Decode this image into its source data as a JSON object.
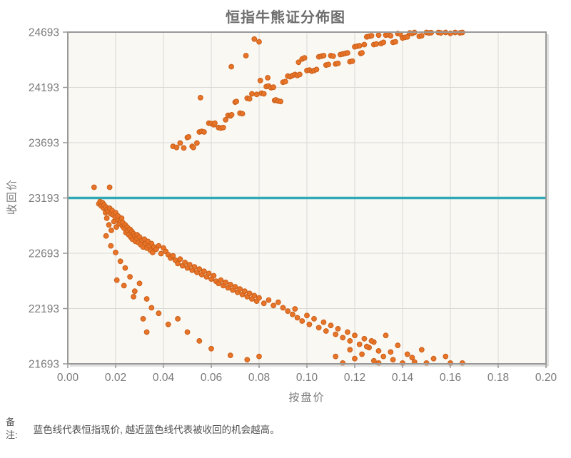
{
  "title": "恒指牛熊证分佈图",
  "note": {
    "label_line1": "备",
    "label_line2": "注:",
    "text": "蓝色线代表恒指现价, 越近蓝色线代表被收回的机会越高。"
  },
  "colors": {
    "dot_fill": "#e8742a",
    "dot_border": "#ca5f17",
    "hline_teal": "#2fa9b5",
    "plot_bg": "#faf8f3",
    "grid": "#d9d9d4",
    "frame": "#99999a",
    "shadow": "#c8c8c4",
    "tick_text": "#7a7a7a",
    "title_text": "#6e6e6e"
  },
  "chart_data": {
    "type": "scatter",
    "title": "恒指牛熊证分佈图",
    "xlabel": "按盘价",
    "ylabel": "收回价",
    "xlim": [
      0.0,
      0.2
    ],
    "ylim": [
      21693,
      24693
    ],
    "grid": true,
    "x_tick_values": [
      0.0,
      0.02,
      0.04,
      0.06,
      0.08,
      0.1,
      0.12,
      0.14,
      0.16,
      0.18,
      0.2
    ],
    "x_tick_labels": [
      "0.00",
      "0.02",
      "0.04",
      "0.06",
      "0.08",
      "0.10",
      "0.12",
      "0.14",
      "0.16",
      "0.18",
      "0.20"
    ],
    "y_tick_values": [
      24693,
      24193,
      23693,
      23193,
      22693,
      22193,
      21693
    ],
    "y_tick_labels": [
      "24693",
      "24193",
      "23693",
      "23193",
      "22693",
      "22193",
      "21693"
    ],
    "hline": {
      "y": 23193,
      "color": "#2fa9b5"
    },
    "series": [
      {
        "name": "upper-cluster-bear",
        "color": "#e8742a",
        "points": [
          [
            0.044,
            23660
          ],
          [
            0.0455,
            23650
          ],
          [
            0.047,
            23690
          ],
          [
            0.0485,
            23645
          ],
          [
            0.05,
            23740
          ],
          [
            0.0505,
            23745
          ],
          [
            0.052,
            23660
          ],
          [
            0.0525,
            23650
          ],
          [
            0.054,
            23690
          ],
          [
            0.055,
            23790
          ],
          [
            0.056,
            23795
          ],
          [
            0.057,
            23790
          ],
          [
            0.0555,
            24100
          ],
          [
            0.059,
            23870
          ],
          [
            0.06,
            23865
          ],
          [
            0.061,
            23855
          ],
          [
            0.0615,
            23870
          ],
          [
            0.063,
            23830
          ],
          [
            0.064,
            23825
          ],
          [
            0.065,
            23830
          ],
          [
            0.066,
            23900
          ],
          [
            0.067,
            23940
          ],
          [
            0.068,
            23935
          ],
          [
            0.0684,
            24380
          ],
          [
            0.0685,
            23945
          ],
          [
            0.07,
            24060
          ],
          [
            0.0705,
            24065
          ],
          [
            0.072,
            23960
          ],
          [
            0.073,
            23955
          ],
          [
            0.0745,
            24480
          ],
          [
            0.075,
            24095
          ],
          [
            0.076,
            24090
          ],
          [
            0.077,
            24135
          ],
          [
            0.078,
            24630
          ],
          [
            0.08,
            24605
          ],
          [
            0.079,
            24130
          ],
          [
            0.0805,
            24255
          ],
          [
            0.081,
            24140
          ],
          [
            0.082,
            24135
          ],
          [
            0.083,
            24200
          ],
          [
            0.0836,
            24280
          ],
          [
            0.084,
            24205
          ],
          [
            0.085,
            24190
          ],
          [
            0.086,
            24195
          ],
          [
            0.0865,
            24075
          ],
          [
            0.087,
            24080
          ],
          [
            0.088,
            24070
          ],
          [
            0.089,
            24065
          ],
          [
            0.09,
            24240
          ],
          [
            0.091,
            24245
          ],
          [
            0.092,
            24295
          ],
          [
            0.093,
            24290
          ],
          [
            0.094,
            24300
          ],
          [
            0.095,
            24310
          ],
          [
            0.096,
            24300
          ],
          [
            0.0965,
            24420
          ],
          [
            0.097,
            24310
          ],
          [
            0.098,
            24450
          ],
          [
            0.099,
            24460
          ],
          [
            0.1,
            24345
          ],
          [
            0.101,
            24350
          ],
          [
            0.102,
            24340
          ],
          [
            0.103,
            24345
          ],
          [
            0.104,
            24355
          ],
          [
            0.105,
            24470
          ],
          [
            0.106,
            24475
          ],
          [
            0.107,
            24480
          ],
          [
            0.108,
            24395
          ],
          [
            0.109,
            24400
          ],
          [
            0.11,
            24480
          ],
          [
            0.111,
            24475
          ],
          [
            0.112,
            24405
          ],
          [
            0.113,
            24410
          ],
          [
            0.114,
            24490
          ],
          [
            0.115,
            24495
          ],
          [
            0.116,
            24500
          ],
          [
            0.117,
            24505
          ],
          [
            0.118,
            24425
          ],
          [
            0.119,
            24430
          ],
          [
            0.12,
            24560
          ],
          [
            0.121,
            24565
          ],
          [
            0.122,
            24570
          ],
          [
            0.1225,
            24500
          ],
          [
            0.123,
            24505
          ],
          [
            0.124,
            24580
          ],
          [
            0.125,
            24650
          ],
          [
            0.126,
            24655
          ],
          [
            0.127,
            24660
          ],
          [
            0.128,
            24580
          ],
          [
            0.129,
            24585
          ],
          [
            0.13,
            24665
          ],
          [
            0.131,
            24590
          ],
          [
            0.132,
            24600
          ],
          [
            0.133,
            24665
          ],
          [
            0.134,
            24670
          ],
          [
            0.135,
            24660
          ],
          [
            0.136,
            24600
          ],
          [
            0.137,
            24605
          ],
          [
            0.138,
            24680
          ],
          [
            0.139,
            24675
          ],
          [
            0.14,
            24640
          ],
          [
            0.141,
            24645
          ],
          [
            0.142,
            24650
          ],
          [
            0.143,
            24685
          ],
          [
            0.144,
            24680
          ],
          [
            0.145,
            24690
          ],
          [
            0.147,
            24655
          ],
          [
            0.148,
            24660
          ],
          [
            0.15,
            24690
          ],
          [
            0.151,
            24685
          ],
          [
            0.152,
            24688
          ],
          [
            0.155,
            24690
          ],
          [
            0.156,
            24686
          ],
          [
            0.158,
            24690
          ],
          [
            0.16,
            24682
          ],
          [
            0.162,
            24690
          ],
          [
            0.164,
            24686
          ],
          [
            0.165,
            24690
          ]
        ]
      },
      {
        "name": "lower-cluster-bull",
        "color": "#e8742a",
        "points": [
          [
            0.011,
            23290
          ],
          [
            0.0175,
            23290
          ],
          [
            0.013,
            23140
          ],
          [
            0.0135,
            23160
          ],
          [
            0.014,
            23120
          ],
          [
            0.0145,
            23150
          ],
          [
            0.015,
            23100
          ],
          [
            0.0152,
            23130
          ],
          [
            0.0158,
            23060
          ],
          [
            0.016,
            23110
          ],
          [
            0.0163,
            23010
          ],
          [
            0.0165,
            23090
          ],
          [
            0.017,
            23070
          ],
          [
            0.0172,
            22950
          ],
          [
            0.0175,
            23100
          ],
          [
            0.018,
            23050
          ],
          [
            0.0182,
            22900
          ],
          [
            0.0185,
            23080
          ],
          [
            0.019,
            23040
          ],
          [
            0.0193,
            22980
          ],
          [
            0.0198,
            23020
          ],
          [
            0.02,
            23060
          ],
          [
            0.0203,
            22930
          ],
          [
            0.0208,
            23000
          ],
          [
            0.021,
            23030
          ],
          [
            0.0215,
            22960
          ],
          [
            0.022,
            22990
          ],
          [
            0.0225,
            23010
          ],
          [
            0.0228,
            22940
          ],
          [
            0.023,
            22970
          ],
          [
            0.0235,
            22920
          ],
          [
            0.024,
            22950
          ],
          [
            0.0243,
            22880
          ],
          [
            0.0248,
            22930
          ],
          [
            0.025,
            22900
          ],
          [
            0.0255,
            22860
          ],
          [
            0.026,
            22910
          ],
          [
            0.0263,
            22840
          ],
          [
            0.0268,
            22890
          ],
          [
            0.027,
            22820
          ],
          [
            0.0275,
            22870
          ],
          [
            0.028,
            22850
          ],
          [
            0.0283,
            22800
          ],
          [
            0.0288,
            22830
          ],
          [
            0.029,
            22860
          ],
          [
            0.0295,
            22790
          ],
          [
            0.03,
            22840
          ],
          [
            0.0305,
            22770
          ],
          [
            0.031,
            22810
          ],
          [
            0.0315,
            22750
          ],
          [
            0.032,
            22820
          ],
          [
            0.0325,
            22780
          ],
          [
            0.033,
            22740
          ],
          [
            0.0335,
            22800
          ],
          [
            0.034,
            22760
          ],
          [
            0.0345,
            22720
          ],
          [
            0.035,
            22780
          ],
          [
            0.0355,
            22700
          ],
          [
            0.036,
            22750
          ],
          [
            0.037,
            22730
          ],
          [
            0.038,
            22760
          ],
          [
            0.039,
            22690
          ],
          [
            0.04,
            22740
          ],
          [
            0.041,
            22710
          ],
          [
            0.042,
            22680
          ],
          [
            0.043,
            22650
          ],
          [
            0.044,
            22670
          ],
          [
            0.045,
            22630
          ],
          [
            0.046,
            22600
          ],
          [
            0.047,
            22640
          ],
          [
            0.048,
            22580
          ],
          [
            0.049,
            22610
          ],
          [
            0.05,
            22560
          ],
          [
            0.051,
            22590
          ],
          [
            0.052,
            22540
          ],
          [
            0.053,
            22570
          ],
          [
            0.054,
            22520
          ],
          [
            0.055,
            22550
          ],
          [
            0.056,
            22500
          ],
          [
            0.057,
            22530
          ],
          [
            0.058,
            22480
          ],
          [
            0.059,
            22510
          ],
          [
            0.06,
            22460
          ],
          [
            0.061,
            22490
          ],
          [
            0.062,
            22440
          ],
          [
            0.063,
            22420
          ],
          [
            0.064,
            22450
          ],
          [
            0.065,
            22400
          ],
          [
            0.066,
            22430
          ],
          [
            0.067,
            22380
          ],
          [
            0.068,
            22410
          ],
          [
            0.069,
            22360
          ],
          [
            0.07,
            22390
          ],
          [
            0.071,
            22340
          ],
          [
            0.072,
            22370
          ],
          [
            0.073,
            22320
          ],
          [
            0.074,
            22350
          ],
          [
            0.075,
            22300
          ],
          [
            0.076,
            22330
          ],
          [
            0.077,
            22280
          ],
          [
            0.078,
            22310
          ],
          [
            0.079,
            22260
          ],
          [
            0.08,
            22290
          ],
          [
            0.082,
            22240
          ],
          [
            0.084,
            22270
          ],
          [
            0.086,
            22220
          ],
          [
            0.088,
            22250
          ],
          [
            0.09,
            22200
          ],
          [
            0.092,
            22170
          ],
          [
            0.094,
            22140
          ],
          [
            0.095,
            22190
          ],
          [
            0.096,
            22110
          ],
          [
            0.098,
            22080
          ],
          [
            0.1,
            22130
          ],
          [
            0.101,
            22050
          ],
          [
            0.103,
            22100
          ],
          [
            0.105,
            22020
          ],
          [
            0.107,
            22070
          ],
          [
            0.108,
            21990
          ],
          [
            0.11,
            22040
          ],
          [
            0.112,
            21960
          ],
          [
            0.113,
            22010
          ],
          [
            0.115,
            21930
          ],
          [
            0.117,
            21980
          ],
          [
            0.118,
            21900
          ],
          [
            0.12,
            21950
          ],
          [
            0.122,
            21870
          ],
          [
            0.124,
            21920
          ],
          [
            0.126,
            21840
          ],
          [
            0.128,
            21890
          ],
          [
            0.13,
            21810
          ],
          [
            0.016,
            22850
          ],
          [
            0.018,
            22760
          ],
          [
            0.02,
            22700
          ],
          [
            0.022,
            22620
          ],
          [
            0.0205,
            22450
          ],
          [
            0.024,
            22560
          ],
          [
            0.026,
            22480
          ],
          [
            0.0235,
            22400
          ],
          [
            0.028,
            22350
          ],
          [
            0.03,
            22420
          ],
          [
            0.0275,
            22300
          ],
          [
            0.033,
            22280
          ],
          [
            0.035,
            22200
          ],
          [
            0.0315,
            22100
          ],
          [
            0.038,
            22150
          ],
          [
            0.042,
            22050
          ],
          [
            0.033,
            21980
          ],
          [
            0.046,
            22100
          ],
          [
            0.05,
            21980
          ],
          [
            0.055,
            21900
          ],
          [
            0.06,
            21830
          ],
          [
            0.068,
            21770
          ],
          [
            0.075,
            21730
          ],
          [
            0.08,
            21760
          ],
          [
            0.112,
            21760
          ],
          [
            0.115,
            21700
          ],
          [
            0.118,
            21820
          ],
          [
            0.12,
            21740
          ],
          [
            0.123,
            21780
          ],
          [
            0.125,
            21850
          ],
          [
            0.127,
            21900
          ],
          [
            0.128,
            21720
          ],
          [
            0.13,
            21700
          ],
          [
            0.132,
            21760
          ],
          [
            0.133,
            21950
          ],
          [
            0.135,
            21800
          ],
          [
            0.136,
            21730
          ],
          [
            0.138,
            21860
          ],
          [
            0.14,
            21700
          ],
          [
            0.142,
            21780
          ],
          [
            0.144,
            21750
          ],
          [
            0.145,
            21710
          ],
          [
            0.148,
            21820
          ],
          [
            0.15,
            21700
          ],
          [
            0.153,
            21740
          ],
          [
            0.158,
            21760
          ],
          [
            0.16,
            21700
          ],
          [
            0.165,
            21700
          ]
        ]
      }
    ]
  }
}
